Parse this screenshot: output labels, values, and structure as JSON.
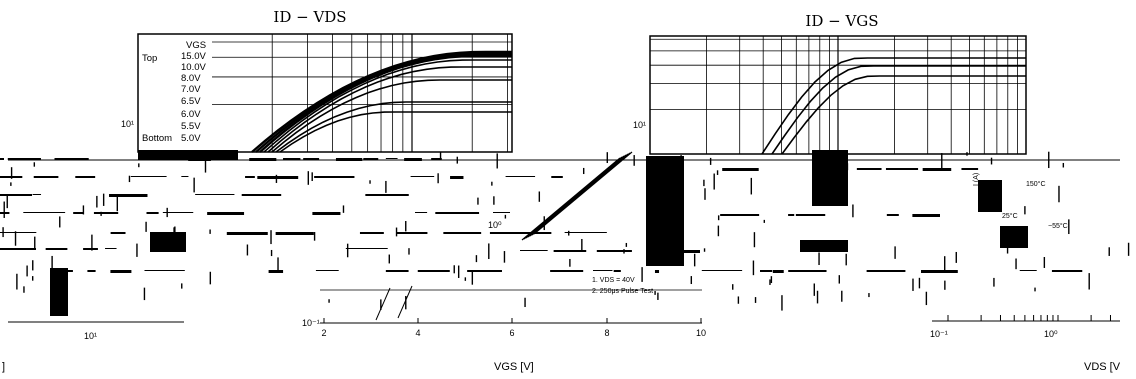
{
  "page": {
    "left_title": "ID  −  VDS",
    "right_title": "ID  −  VGS"
  },
  "chart_data": [
    {
      "type": "line",
      "title": "ID  −  VDS",
      "xlabel": "",
      "ylabel": "",
      "xscale": "log",
      "yscale": "log",
      "y_tick_labels": [
        "10¹"
      ],
      "x_tick_labels": [
        "10¹"
      ],
      "legend": {
        "placement": "left-inside",
        "header_label": "VGS",
        "top_label": "Top",
        "bottom_label": "Bottom",
        "entries": [
          "15.0V",
          "10.0V",
          "8.0V",
          "7.0V",
          "6.5V",
          "6.0V",
          "5.5V",
          "5.0V"
        ]
      },
      "series": [
        {
          "name": "15.0V",
          "saturation_level": 1.0
        },
        {
          "name": "10.0V",
          "saturation_level": 0.98
        },
        {
          "name": "8.0V",
          "saturation_level": 0.96
        },
        {
          "name": "7.0V",
          "saturation_level": 0.92
        },
        {
          "name": "6.5V",
          "saturation_level": 0.85
        },
        {
          "name": "6.0V",
          "saturation_level": 0.72
        },
        {
          "name": "5.5V",
          "saturation_level": 0.5
        },
        {
          "name": "5.0V",
          "saturation_level": 0.4
        }
      ],
      "grid": true
    },
    {
      "type": "line",
      "title": "ID  −  VGS",
      "xlabel": "VGS [V]",
      "ylabel": "",
      "yscale": "log",
      "x": [
        2,
        4,
        6,
        8,
        10
      ],
      "x_tick_labels": [
        "2",
        "4",
        "6",
        "8",
        "10"
      ],
      "y_tick_labels": [
        "10¹",
        "10⁻¹"
      ],
      "annotations": [
        "10⁰",
        "1. VDS = 40V",
        "2. 250μs Pulse Test"
      ],
      "series_count": 3,
      "grid": true
    },
    {
      "type": "line",
      "title": "",
      "xlabel": "VDS [V",
      "ylabel": "I (A)",
      "xscale": "log",
      "x_tick_labels": [
        "10⁻¹",
        "10⁰"
      ],
      "annotations": [
        "150°C",
        "25°C",
        "−55°C"
      ],
      "grid": true
    }
  ],
  "fragments": {
    "bottom_left": "]"
  }
}
